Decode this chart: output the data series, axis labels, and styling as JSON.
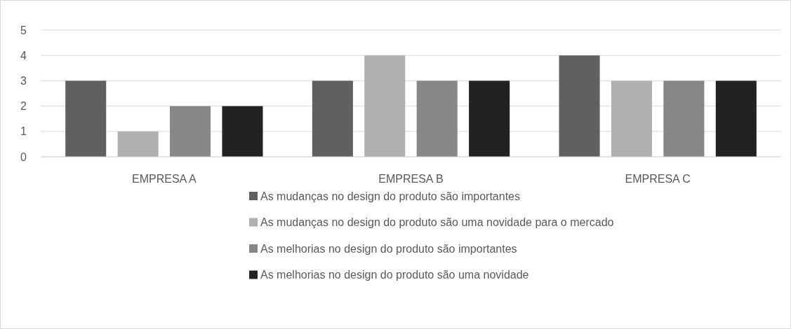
{
  "chart_data": {
    "type": "bar",
    "categories": [
      "EMPRESA A",
      "EMPRESA B",
      "EMPRESA C"
    ],
    "series": [
      {
        "name": "As mudanças no design do produto são importantes",
        "color": "#606060",
        "values": [
          3,
          3,
          4
        ]
      },
      {
        "name": "As mudanças no design do produto são uma novidade para o mercado",
        "color": "#b0b0b0",
        "values": [
          1,
          4,
          3
        ]
      },
      {
        "name": "As melhorias no design do produto são importantes",
        "color": "#878787",
        "values": [
          2,
          3,
          3
        ]
      },
      {
        "name": "As melhorias no design do produto são uma novidade",
        "color": "#222222",
        "values": [
          2,
          3,
          3
        ]
      }
    ],
    "ylim": [
      0,
      5
    ],
    "yticks": [
      0,
      1,
      2,
      3,
      4,
      5
    ],
    "grid": "y",
    "legend": "bottom"
  }
}
